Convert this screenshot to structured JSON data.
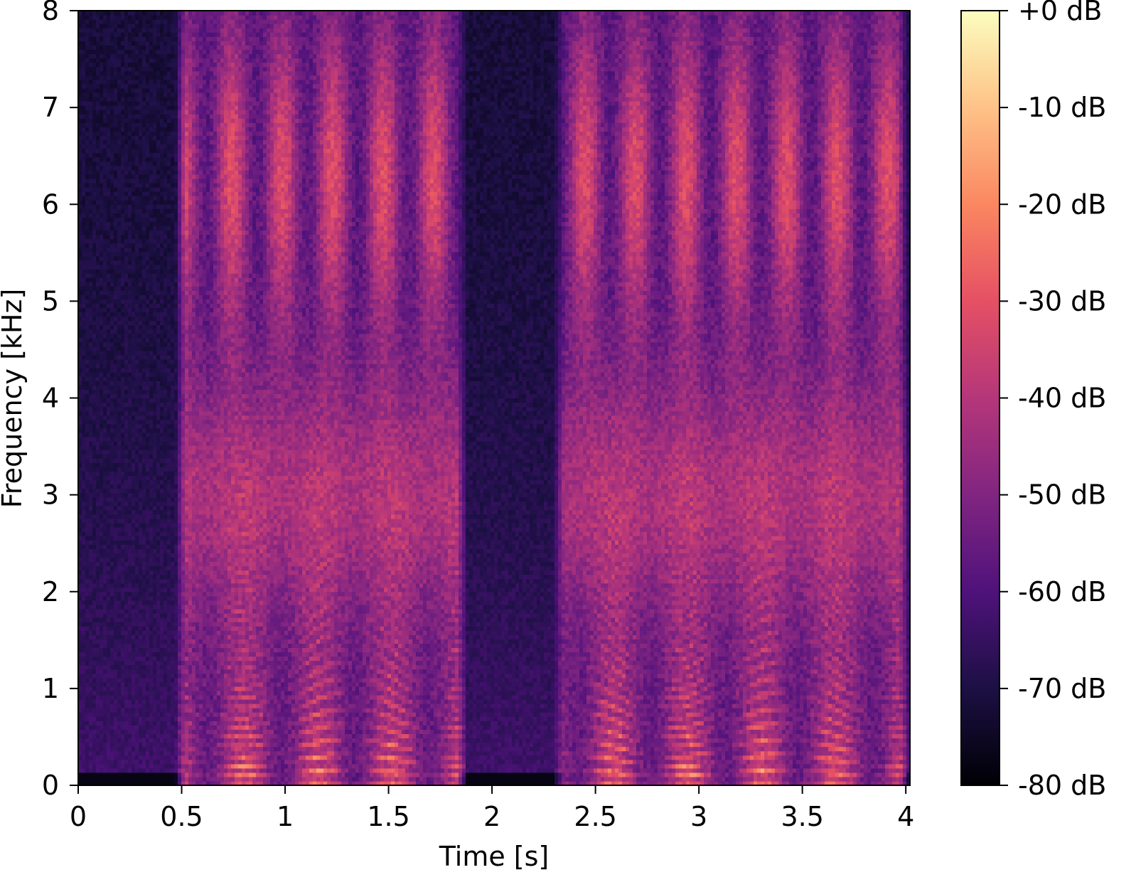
{
  "chart_data": {
    "type": "heatmap",
    "title": "",
    "xlabel": "Time [s]",
    "ylabel": "Frequency [kHz]",
    "xlim": [
      0,
      4.02
    ],
    "ylim": [
      0,
      8
    ],
    "x_ticks": [
      {
        "value": 0,
        "label": "0"
      },
      {
        "value": 0.5,
        "label": "0.5"
      },
      {
        "value": 1,
        "label": "1"
      },
      {
        "value": 1.5,
        "label": "1.5"
      },
      {
        "value": 2,
        "label": "2"
      },
      {
        "value": 2.5,
        "label": "2.5"
      },
      {
        "value": 3,
        "label": "3"
      },
      {
        "value": 3.5,
        "label": "3.5"
      },
      {
        "value": 4,
        "label": "4"
      }
    ],
    "y_ticks": [
      {
        "value": 0,
        "label": "0"
      },
      {
        "value": 1,
        "label": "1"
      },
      {
        "value": 2,
        "label": "2"
      },
      {
        "value": 3,
        "label": "3"
      },
      {
        "value": 4,
        "label": "4"
      },
      {
        "value": 5,
        "label": "5"
      },
      {
        "value": 6,
        "label": "6"
      },
      {
        "value": 7,
        "label": "7"
      },
      {
        "value": 8,
        "label": "8"
      }
    ],
    "colorbar": {
      "colormap": "magma",
      "range": [
        -80,
        0
      ],
      "ticks": [
        {
          "value": 0,
          "label": "+0 dB"
        },
        {
          "value": -10,
          "label": "-10 dB"
        },
        {
          "value": -20,
          "label": "-20 dB"
        },
        {
          "value": -30,
          "label": "-30 dB"
        },
        {
          "value": -40,
          "label": "-40 dB"
        },
        {
          "value": -50,
          "label": "-50 dB"
        },
        {
          "value": -60,
          "label": "-60 dB"
        },
        {
          "value": -70,
          "label": "-70 dB"
        },
        {
          "value": -80,
          "label": "-80 dB"
        }
      ]
    },
    "speech_segments": [
      {
        "start": 0.47,
        "end": 1.88
      },
      {
        "start": 2.3,
        "end": 4.02
      }
    ]
  }
}
